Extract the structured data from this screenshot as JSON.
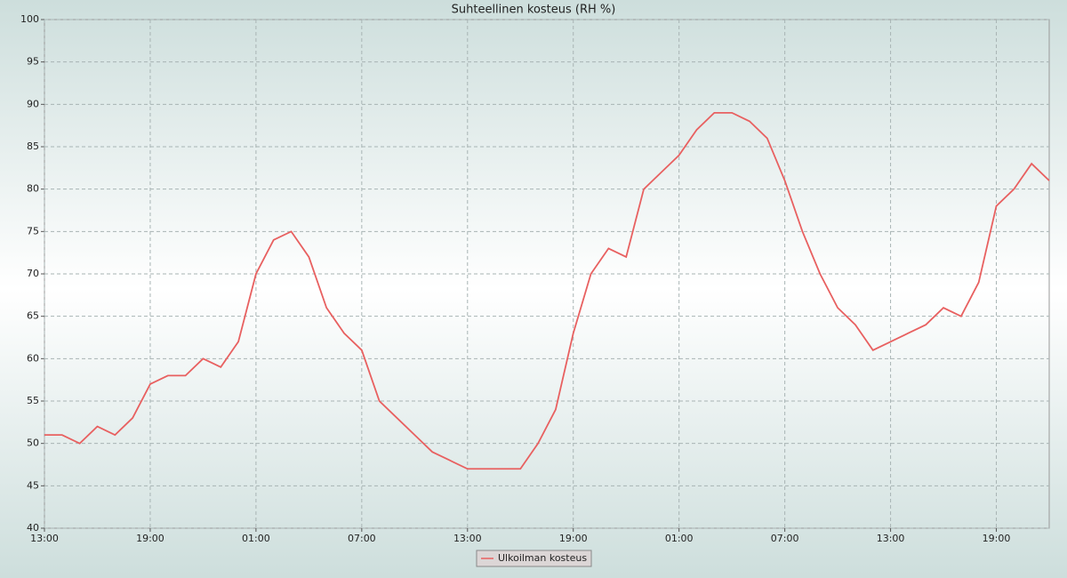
{
  "chart_data": {
    "type": "line",
    "title": "Suhteellinen kosteus (RH %)",
    "x": [
      0,
      1,
      2,
      3,
      4,
      5,
      6,
      7,
      8,
      9,
      10,
      11,
      12,
      13,
      14,
      15,
      16,
      17,
      18,
      19,
      20,
      21,
      22,
      23,
      24,
      25,
      26,
      27,
      28,
      29,
      30,
      31,
      32,
      33,
      34,
      35,
      36,
      37,
      38,
      39,
      40,
      41,
      42,
      43,
      44,
      45,
      46,
      47,
      48,
      49,
      50,
      51,
      52,
      53,
      54,
      55,
      56,
      57
    ],
    "series": [
      {
        "name": "Ulkoilman kosteus",
        "color": "#e86060",
        "values": [
          51,
          51,
          50,
          52,
          51,
          53,
          57,
          58,
          58,
          60,
          59,
          62,
          70,
          74,
          75,
          72,
          66,
          63,
          61,
          55,
          53,
          51,
          49,
          48,
          47,
          47,
          47,
          47,
          50,
          54,
          63,
          70,
          73,
          72,
          80,
          82,
          84,
          87,
          89,
          89,
          88,
          86,
          81,
          75,
          70,
          66,
          64,
          61,
          62,
          63,
          64,
          66,
          65,
          69,
          78,
          80,
          83,
          81
        ]
      }
    ],
    "xlim": [
      0,
      57
    ],
    "xticks": [
      {
        "value": 0,
        "label": "13:00"
      },
      {
        "value": 6,
        "label": "19:00"
      },
      {
        "value": 12,
        "label": "01:00"
      },
      {
        "value": 18,
        "label": "07:00"
      },
      {
        "value": 24,
        "label": "13:00"
      },
      {
        "value": 30,
        "label": "19:00"
      },
      {
        "value": 36,
        "label": "01:00"
      },
      {
        "value": 42,
        "label": "07:00"
      },
      {
        "value": 48,
        "label": "13:00"
      },
      {
        "value": 54,
        "label": "19:00"
      }
    ],
    "ylim": [
      40,
      100
    ],
    "yticks": [
      40,
      45,
      50,
      55,
      60,
      65,
      70,
      75,
      80,
      85,
      90,
      95,
      100
    ],
    "grid": true
  }
}
